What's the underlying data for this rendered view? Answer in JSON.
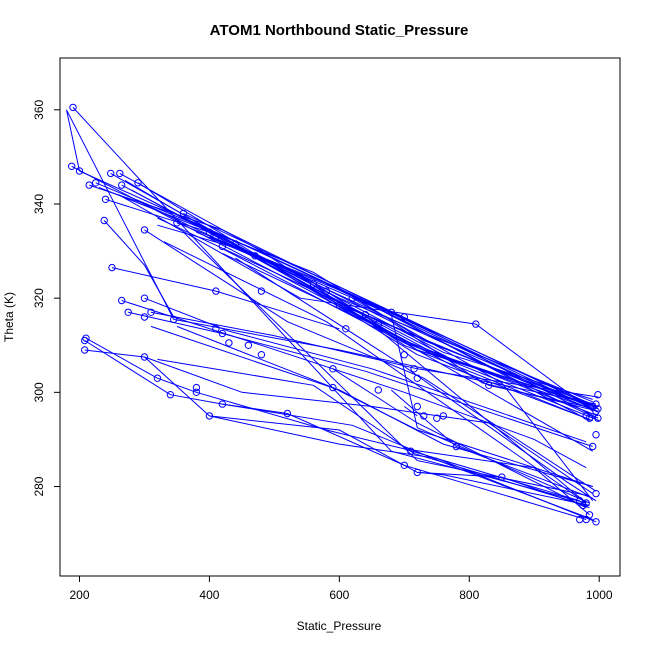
{
  "chart_data": {
    "type": "line",
    "title": "ATOM1 Northbound Static_Pressure",
    "xlabel": "Static_Pressure",
    "ylabel": "Theta (K)",
    "xlim": [
      170,
      1032
    ],
    "ylim": [
      261,
      371
    ],
    "xticks": [
      "200",
      "400",
      "600",
      "800",
      "1000"
    ],
    "yticks": [
      "280",
      "300",
      "320",
      "340",
      "360"
    ],
    "grid": false,
    "color": "#0000ff",
    "series": [
      {
        "x": [
          190,
          680,
          980
        ],
        "y": [
          360.5,
          287.5,
          276.5
        ]
      },
      {
        "x": [
          188,
          500,
          720,
          1000
        ],
        "y": [
          348.0,
          325.5,
          309.5,
          294.0
        ]
      },
      {
        "x": [
          200,
          450,
          700,
          990
        ],
        "y": [
          347.0,
          331.5,
          315.5,
          296.5
        ]
      },
      {
        "x": [
          215,
          420,
          680,
          995
        ],
        "y": [
          344.0,
          334.5,
          317.0,
          297.0
        ]
      },
      {
        "x": [
          225,
          460,
          740,
          998
        ],
        "y": [
          344.5,
          331.0,
          313.0,
          294.5
        ]
      },
      {
        "x": [
          238,
          300,
          345
        ],
        "y": [
          336.5,
          327.0,
          316.0
        ]
      },
      {
        "x": [
          248,
          440,
          620,
          995
        ],
        "y": [
          346.5,
          331.5,
          317.5,
          296.0
        ]
      },
      {
        "x": [
          262,
          480,
          700,
          980
        ],
        "y": [
          346.5,
          330.0,
          310.0,
          294.5
        ]
      },
      {
        "x": [
          265,
          500,
          760,
          985
        ],
        "y": [
          344.0,
          327.0,
          310.5,
          297.0
        ]
      },
      {
        "x": [
          240,
          400,
          600,
          990
        ],
        "y": [
          341.0,
          334.0,
          320.0,
          298.0
        ]
      },
      {
        "x": [
          290,
          600,
          990
        ],
        "y": [
          344.5,
          318.5,
          287.5
        ]
      },
      {
        "x": [
          300,
          520,
          730,
          995
        ],
        "y": [
          334.5,
          315.0,
          303.0,
          279.0
        ]
      },
      {
        "x": [
          250,
          410,
          600
        ],
        "y": [
          326.5,
          321.5,
          313.5
        ]
      },
      {
        "x": [
          265,
          480,
          700,
          900,
          980
        ],
        "y": [
          319.5,
          310.0,
          300.0,
          290.0,
          284.0
        ]
      },
      {
        "x": [
          275,
          420,
          640,
          990
        ],
        "y": [
          317.0,
          312.5,
          304.5,
          288.5
        ]
      },
      {
        "x": [
          300,
          430,
          650,
          980
        ],
        "y": [
          320.0,
          313.0,
          305.0,
          289.5
        ]
      },
      {
        "x": [
          310,
          500,
          720,
          999
        ],
        "y": [
          317.0,
          312.0,
          305.0,
          299.0
        ]
      },
      {
        "x": [
          345,
          600,
          800,
          995
        ],
        "y": [
          315.5,
          309.0,
          303.0,
          297.5
        ]
      },
      {
        "x": [
          210,
          320,
          380
        ],
        "y": [
          311.5,
          303.0,
          300.0
        ]
      },
      {
        "x": [
          208,
          340,
          420,
          520,
          700,
          980
        ],
        "y": [
          311.0,
          299.5,
          297.5,
          295.5,
          284.5,
          273.0
        ]
      },
      {
        "x": [
          208,
          300,
          400,
          600,
          750,
          995
        ],
        "y": [
          309.0,
          307.5,
          295.0,
          289.0,
          286.0,
          272.5
        ]
      },
      {
        "x": [
          320,
          560,
          715,
          980
        ],
        "y": [
          307.0,
          301.5,
          287.0,
          276.0
        ]
      },
      {
        "x": [
          300,
          450,
          650,
          830,
          990
        ],
        "y": [
          307.5,
          300.0,
          297.0,
          293.5,
          278.5
        ]
      },
      {
        "x": [
          400,
          600,
          720,
          850,
          985
        ],
        "y": [
          295.0,
          292.0,
          283.0,
          282.0,
          275.5
        ]
      },
      {
        "x": [
          380,
          580,
          700,
          970
        ],
        "y": [
          300.0,
          292.0,
          288.0,
          277.0
        ]
      },
      {
        "x": [
          420,
          620,
          780,
          990
        ],
        "y": [
          297.5,
          293.0,
          284.0,
          273.0
        ]
      },
      {
        "x": [
          350,
          590,
          720,
          990
        ],
        "y": [
          314.0,
          301.0,
          292.0,
          280.0
        ]
      },
      {
        "x": [
          310,
          600,
          760,
          990
        ],
        "y": [
          314.0,
          300.5,
          289.0,
          280.0
        ]
      },
      {
        "x": [
          230,
          560,
          730,
          998
        ],
        "y": [
          343.5,
          325.5,
          311.0,
          296.5
        ]
      },
      {
        "x": [
          260,
          540,
          810,
          990
        ],
        "y": [
          342.0,
          320.0,
          314.5,
          296.0
        ]
      },
      {
        "x": [
          320,
          640,
          995
        ],
        "y": [
          337.0,
          316.5,
          296.0
        ]
      },
      {
        "x": [
          360,
          660,
          990
        ],
        "y": [
          338.0,
          318.5,
          297.0
        ]
      },
      {
        "x": [
          280,
          530,
          700,
          998
        ],
        "y": [
          343.0,
          324.0,
          311.0,
          295.0
        ]
      },
      {
        "x": [
          270,
          560,
          720,
          990
        ],
        "y": [
          345.0,
          321.5,
          308.0,
          294.0
        ]
      },
      {
        "x": [
          300,
          420,
          630,
          880,
          995
        ],
        "y": [
          340.0,
          332.0,
          320.0,
          302.0,
          294.5
        ]
      },
      {
        "x": [
          320,
          470,
          680,
          820,
          998
        ],
        "y": [
          335.5,
          329.5,
          315.0,
          302.0,
          296.0
        ]
      },
      {
        "x": [
          350,
          600,
          740,
          985
        ],
        "y": [
          336.0,
          322.0,
          312.0,
          294.0
        ]
      },
      {
        "x": [
          380,
          500,
          760,
          990
        ],
        "y": [
          334.0,
          327.0,
          308.5,
          298.5
        ]
      },
      {
        "x": [
          400,
          540,
          720,
          998
        ],
        "y": [
          333.0,
          325.0,
          309.0,
          297.0
        ]
      },
      {
        "x": [
          420,
          700,
          990
        ],
        "y": [
          330.5,
          310.5,
          297.0
        ]
      },
      {
        "x": [
          440,
          750,
          998
        ],
        "y": [
          331.0,
          308.0,
          296.0
        ]
      },
      {
        "x": [
          440,
          700,
          950,
          995
        ],
        "y": [
          328.5,
          305.5,
          281.0,
          277.0
        ]
      },
      {
        "x": [
          420,
          650,
          980
        ],
        "y": [
          329.5,
          314.5,
          276.5
        ]
      },
      {
        "x": [
          360,
          720,
          985
        ],
        "y": [
          334.0,
          285.5,
          278.0
        ]
      },
      {
        "x": [
          330,
          580,
          980
        ],
        "y": [
          332.0,
          315.0,
          276.5
        ]
      },
      {
        "x": [
          470,
          680,
          720,
          985
        ],
        "y": [
          329.0,
          316.5,
          292.5,
          276.5
        ]
      },
      {
        "x": [
          500,
          780,
          998
        ],
        "y": [
          326.5,
          306.5,
          297.0
        ]
      },
      {
        "x": [
          555,
          830,
          995
        ],
        "y": [
          322.0,
          301.5,
          296.5
        ]
      },
      {
        "x": [
          580,
          900,
          990
        ],
        "y": [
          323.0,
          302.0,
          297.5
        ]
      },
      {
        "x": [
          620,
          850,
          990
        ],
        "y": [
          320.0,
          302.0,
          277.0
        ]
      },
      {
        "x": [
          700,
          720
        ],
        "y": [
          297.0,
          295.0
        ]
      },
      {
        "x": [
          590,
          720,
          980
        ],
        "y": [
          305.0,
          293.5,
          275.5
        ]
      },
      {
        "x": [
          680,
          780,
          990
        ],
        "y": [
          300.5,
          288.5,
          277.5
        ]
      },
      {
        "x": [
          700,
          900,
          985
        ],
        "y": [
          288.0,
          284.0,
          274.0
        ]
      },
      {
        "x": [
          720,
          760,
          985
        ],
        "y": [
          283.0,
          282.5,
          276.0
        ]
      },
      {
        "x": [
          200,
          180,
          345
        ],
        "y": [
          347.0,
          360.0,
          315.5
        ]
      }
    ],
    "points": [
      [
        190,
        360.5
      ],
      [
        188,
        348
      ],
      [
        200,
        347
      ],
      [
        215,
        344
      ],
      [
        225,
        344.5
      ],
      [
        238,
        336.5
      ],
      [
        248,
        346.5
      ],
      [
        262,
        346.5
      ],
      [
        265,
        344
      ],
      [
        240,
        341
      ],
      [
        250,
        326.5
      ],
      [
        265,
        319.5
      ],
      [
        275,
        317
      ],
      [
        300,
        320
      ],
      [
        310,
        317
      ],
      [
        300,
        316
      ],
      [
        345,
        315.5
      ],
      [
        300,
        334.5
      ],
      [
        290,
        344.5
      ],
      [
        210,
        311.5
      ],
      [
        208,
        311
      ],
      [
        208,
        309
      ],
      [
        320,
        303
      ],
      [
        340,
        299.5
      ],
      [
        380,
        300
      ],
      [
        400,
        295
      ],
      [
        420,
        297.5
      ],
      [
        300,
        307.5
      ],
      [
        380,
        301
      ],
      [
        360,
        338
      ],
      [
        350,
        336
      ],
      [
        410,
        333
      ],
      [
        420,
        331
      ],
      [
        440,
        331.5
      ],
      [
        400,
        334
      ],
      [
        470,
        329
      ],
      [
        480,
        321.5
      ],
      [
        410,
        321.5
      ],
      [
        410,
        313.5
      ],
      [
        420,
        312.5
      ],
      [
        430,
        310.5
      ],
      [
        460,
        310
      ],
      [
        480,
        308
      ],
      [
        520,
        295.5
      ],
      [
        560,
        323
      ],
      [
        580,
        321.5
      ],
      [
        600,
        318.5
      ],
      [
        610,
        313.5
      ],
      [
        620,
        320
      ],
      [
        640,
        316.5
      ],
      [
        660,
        314.5
      ],
      [
        680,
        317
      ],
      [
        700,
        316
      ],
      [
        700,
        308
      ],
      [
        715,
        305
      ],
      [
        720,
        303
      ],
      [
        590,
        305
      ],
      [
        590,
        301
      ],
      [
        660,
        300.5
      ],
      [
        710,
        287.5
      ],
      [
        700,
        284.5
      ],
      [
        720,
        283
      ],
      [
        730,
        295
      ],
      [
        720,
        297
      ],
      [
        750,
        294.5
      ],
      [
        760,
        295
      ],
      [
        780,
        288.5
      ],
      [
        810,
        314.5
      ],
      [
        830,
        301.5
      ],
      [
        850,
        282
      ],
      [
        970,
        277
      ],
      [
        975,
        276
      ],
      [
        980,
        276.5
      ],
      [
        985,
        274
      ],
      [
        980,
        273
      ],
      [
        970,
        273
      ],
      [
        995,
        272.5
      ],
      [
        995,
        278.5
      ],
      [
        990,
        288.5
      ],
      [
        995,
        291
      ],
      [
        998,
        294.5
      ],
      [
        985,
        294.5
      ],
      [
        998,
        296.5
      ],
      [
        995,
        297.5
      ],
      [
        998,
        299.5
      ],
      [
        990,
        297
      ],
      [
        980,
        295
      ],
      [
        995,
        296
      ]
    ]
  }
}
